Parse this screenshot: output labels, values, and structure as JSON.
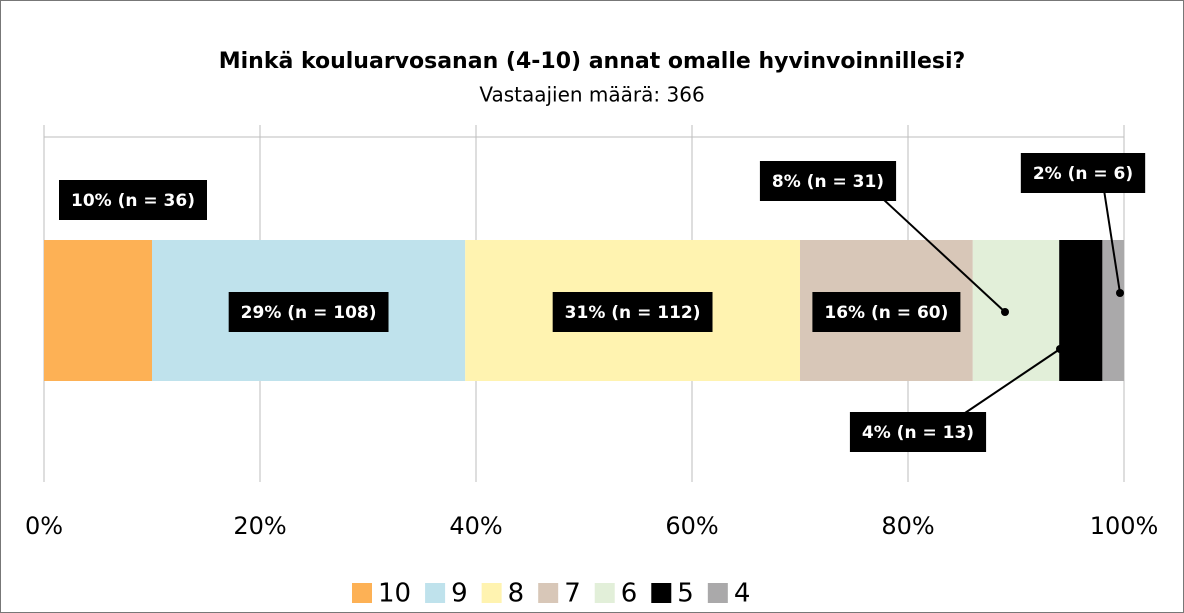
{
  "chart_data": {
    "type": "stacked-bar",
    "orientation": "horizontal",
    "title": "Minkä kouluarvosanan (4-10) annat omalle hyvinvoinnillesi?",
    "subtitle": "Vastaajien määrä: 366",
    "xlim": [
      0,
      100
    ],
    "xticks": [
      {
        "value": 0,
        "label": "0%"
      },
      {
        "value": 20,
        "label": "20%"
      },
      {
        "value": 40,
        "label": "40%"
      },
      {
        "value": 60,
        "label": "60%"
      },
      {
        "value": 80,
        "label": "80%"
      },
      {
        "value": 100,
        "label": "100%"
      }
    ],
    "grid": true,
    "legend": "bottom",
    "series": [
      {
        "name": "10",
        "color": "#fdb155",
        "values": [
          10
        ],
        "value_labels": [
          "10% (n = 36)"
        ]
      },
      {
        "name": "9",
        "color": "#bfe2ec",
        "values": [
          29
        ],
        "value_labels": [
          "29% (n = 108)"
        ]
      },
      {
        "name": "8",
        "color": "#fff3b0",
        "values": [
          31
        ],
        "value_labels": [
          "31% (n = 112)"
        ]
      },
      {
        "name": "7",
        "color": "#d8c7b8",
        "values": [
          16
        ],
        "value_labels": [
          "16% (n = 60)"
        ]
      },
      {
        "name": "6",
        "color": "#e2efd9",
        "values": [
          8
        ],
        "value_labels": [
          "8% (n = 31)"
        ]
      },
      {
        "name": "5",
        "color": "#000000",
        "values": [
          4
        ],
        "value_labels": [
          "4% (n = 13)"
        ]
      },
      {
        "name": "4",
        "color": "#aaa9aa",
        "values": [
          2
        ],
        "value_labels": [
          "2% (n = 6)"
        ]
      }
    ]
  }
}
